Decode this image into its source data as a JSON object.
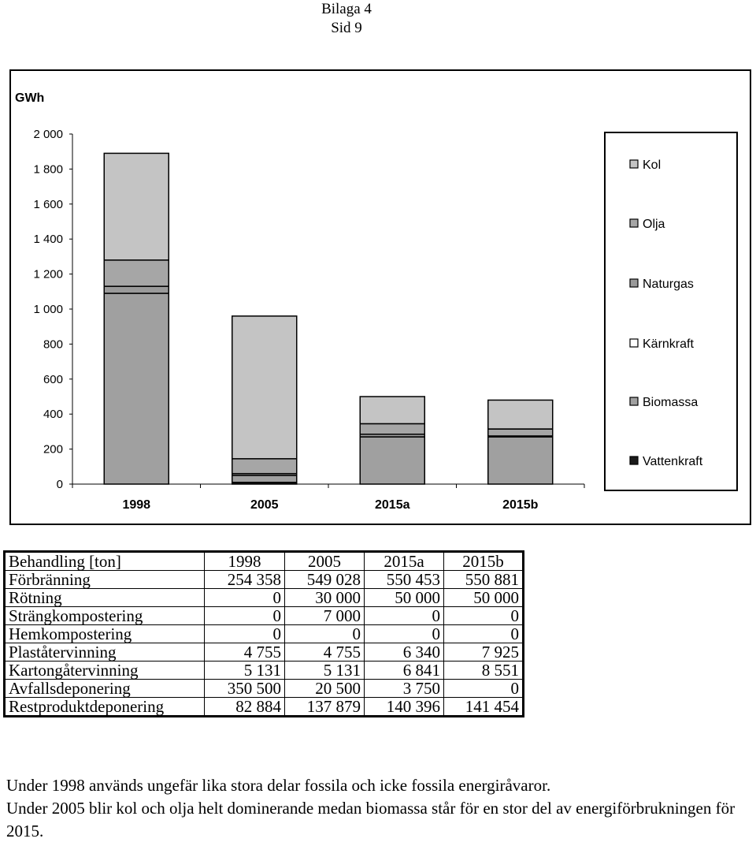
{
  "header": {
    "line1": "Bilaga 4",
    "line2": "Sid 9"
  },
  "chart_data": {
    "type": "bar",
    "stacked": true,
    "ylabel": "GWh",
    "ylim": [
      0,
      2000
    ],
    "yticks": [
      "0",
      "200",
      "400",
      "600",
      "800",
      "1 000",
      "1 200",
      "1 400",
      "1 600",
      "1 800",
      "2 000"
    ],
    "categories": [
      "1998",
      "2005",
      "2015a",
      "2015b"
    ],
    "legend_position": "right",
    "series": [
      {
        "name": "Vattenkraft",
        "values": [
          0,
          10,
          0,
          0
        ],
        "color": "#1a1a1a"
      },
      {
        "name": "Biomassa",
        "values": [
          1090,
          40,
          270,
          270
        ],
        "color": "#a0a0a0"
      },
      {
        "name": "Kärnkraft",
        "values": [
          0,
          0,
          0,
          0
        ],
        "color": "#ffffff"
      },
      {
        "name": "Naturgas",
        "values": [
          40,
          10,
          15,
          5
        ],
        "color": "#9a9a9a"
      },
      {
        "name": "Olja",
        "values": [
          150,
          85,
          60,
          40
        ],
        "color": "#a6a6a6"
      },
      {
        "name": "Kol",
        "values": [
          610,
          815,
          155,
          165
        ],
        "color": "#c4c4c4"
      }
    ]
  },
  "table": {
    "header": [
      "Behandling [ton]",
      "1998",
      "2005",
      "2015a",
      "2015b"
    ],
    "rows": [
      [
        "Förbränning",
        "254 358",
        "549 028",
        "550 453",
        "550 881"
      ],
      [
        "Rötning",
        "0",
        "30 000",
        "50 000",
        "50 000"
      ],
      [
        "Strängkompostering",
        "0",
        "7 000",
        "0",
        "0"
      ],
      [
        "Hemkompostering",
        "0",
        "0",
        "0",
        "0"
      ],
      [
        "Plaståtervinning",
        "4 755",
        "4 755",
        "6 340",
        "7 925"
      ],
      [
        "Kartongåtervinning",
        "5 131",
        "5 131",
        "6 841",
        "8 551"
      ],
      [
        "Avfallsdeponering",
        "350 500",
        "20 500",
        "3 750",
        "0"
      ],
      [
        "Restproduktdeponering",
        "82 884",
        "137 879",
        "140 396",
        "141 454"
      ]
    ]
  },
  "footer": {
    "p1": "Under 1998 används ungefär lika stora delar fossila och icke fossila energiråvaror.",
    "p2": "Under 2005 blir kol och olja helt dominerande medan biomassa står för en stor del av energiförbrukningen för 2015."
  }
}
